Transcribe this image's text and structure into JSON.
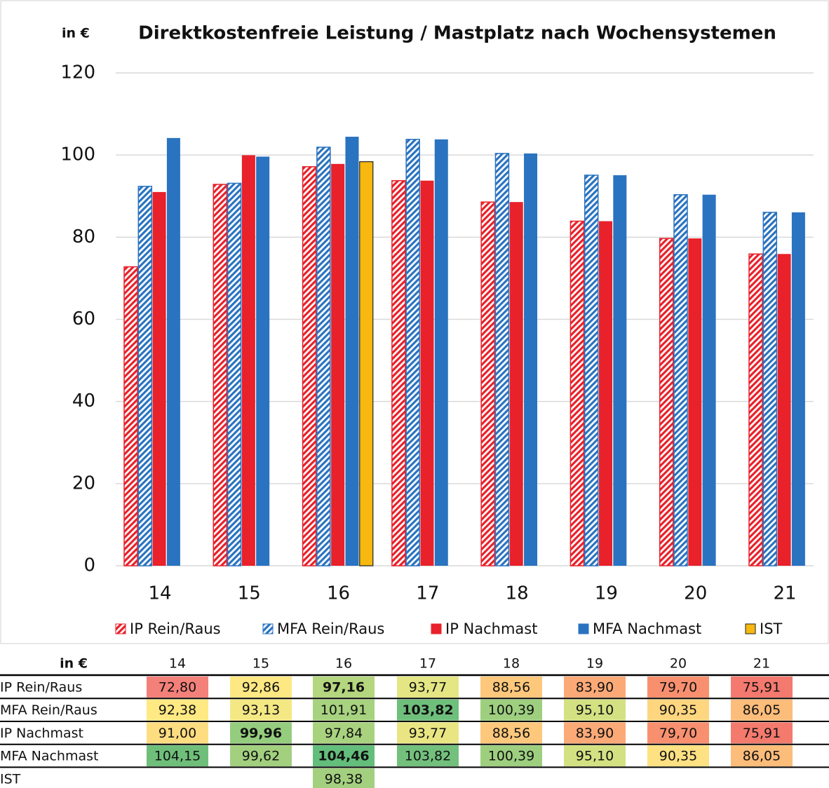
{
  "chart_data": {
    "type": "bar",
    "title": "Direktkostenfreie Leistung / Mastplatz nach Wochensystemen",
    "y_label": "in €",
    "categories": [
      "14",
      "15",
      "16",
      "17",
      "18",
      "19",
      "20",
      "21"
    ],
    "series": [
      {
        "name": "IP Rein/Raus",
        "color": "#e8212a",
        "hatched": true,
        "values": [
          72.8,
          92.86,
          97.16,
          93.77,
          88.56,
          83.9,
          79.7,
          75.91
        ]
      },
      {
        "name": "MFA Rein/Raus",
        "color": "#2a73c0",
        "hatched": true,
        "values": [
          92.38,
          93.13,
          101.91,
          103.82,
          100.39,
          95.1,
          90.35,
          86.05
        ]
      },
      {
        "name": "IP Nachmast",
        "color": "#e8212a",
        "hatched": false,
        "values": [
          91.0,
          99.96,
          97.84,
          93.77,
          88.56,
          83.9,
          79.7,
          75.91
        ]
      },
      {
        "name": "MFA Nachmast",
        "color": "#2a73c0",
        "hatched": false,
        "values": [
          104.15,
          99.62,
          104.46,
          103.82,
          100.39,
          95.1,
          90.35,
          86.05
        ]
      },
      {
        "name": "IST",
        "color": "#f7b80f",
        "hatched": false,
        "values": [
          null,
          null,
          98.38,
          null,
          null,
          null,
          null,
          null
        ]
      }
    ],
    "ylim": [
      0,
      120
    ],
    "yticks": [
      0,
      20,
      40,
      60,
      80,
      100,
      120
    ],
    "grid": true,
    "legend": "bottom"
  },
  "table": {
    "header": [
      "in €",
      "14",
      "15",
      "16",
      "17",
      "18",
      "19",
      "20",
      "21"
    ],
    "rows": [
      [
        "IP Rein/Raus",
        "72,80",
        "92,86",
        "97,16",
        "93,77",
        "88,56",
        "83,90",
        "79,70",
        "75,91"
      ],
      [
        "MFA Rein/Raus",
        "92,38",
        "93,13",
        "101,91",
        "103,82",
        "100,39",
        "95,10",
        "90,35",
        "86,05"
      ],
      [
        "IP Nachmast",
        "91,00",
        "99,96",
        "97,84",
        "93,77",
        "88,56",
        "83,90",
        "79,70",
        "75,91"
      ],
      [
        "MFA Nachmast",
        "104,15",
        "99,62",
        "104,46",
        "103,82",
        "100,39",
        "95,10",
        "90,35",
        "86,05"
      ],
      [
        "IST",
        null,
        null,
        "98,38",
        null,
        null,
        null,
        null,
        null
      ]
    ],
    "colors": [
      [
        null,
        "#f4807a",
        "#fde883",
        "#b4d67e",
        "#e3e683",
        "#fdc87c",
        "#fbaa77",
        "#f8906f",
        "#f4796e"
      ],
      [
        null,
        "#fee983",
        "#f4e884",
        "#a7d27f",
        "#6fbf7c",
        "#9dcf7f",
        "#d4e182",
        "#fed680",
        "#fcbc7a"
      ],
      [
        null,
        "#fedd81",
        "#95cd7e",
        "#a9d27f",
        "#e9e583",
        "#fdc87c",
        "#fbaa77",
        "#f8906f",
        "#f47a6e"
      ],
      [
        null,
        "#6fbf7b",
        "#a2d07f",
        "#63be7b",
        "#72c07c",
        "#9dcf7f",
        "#d4e182",
        "#fee182",
        "#fcbc7a"
      ],
      [
        null,
        null,
        null,
        "#a3d07f",
        null,
        null,
        null,
        null,
        null
      ]
    ],
    "bold": [
      [
        0,
        3
      ],
      [
        1,
        4
      ],
      [
        2,
        2
      ],
      [
        3,
        3
      ]
    ]
  }
}
